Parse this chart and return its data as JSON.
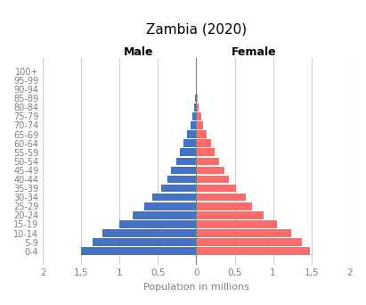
{
  "title": "Zambia (2020)",
  "xlabel": "Population in millions",
  "age_groups": [
    "0-4",
    "5-9",
    "10-14",
    "15-19",
    "20-24",
    "25-29",
    "30-34",
    "35-39",
    "40-44",
    "45-49",
    "50-54",
    "55-59",
    "60-64",
    "65-69",
    "70-74",
    "75-79",
    "80-84",
    "85-89",
    "90-94",
    "95-99",
    "100+"
  ],
  "male": [
    1.5,
    1.35,
    1.22,
    1.0,
    0.83,
    0.68,
    0.57,
    0.46,
    0.38,
    0.33,
    0.26,
    0.21,
    0.17,
    0.12,
    0.08,
    0.05,
    0.03,
    0.015,
    0.005,
    0.002,
    0.001
  ],
  "female": [
    1.48,
    1.38,
    1.24,
    1.05,
    0.88,
    0.73,
    0.65,
    0.52,
    0.42,
    0.37,
    0.3,
    0.24,
    0.19,
    0.13,
    0.09,
    0.06,
    0.03,
    0.015,
    0.005,
    0.002,
    0.001
  ],
  "male_color": "#4472C4",
  "female_color": "#FF6B6B",
  "xlim": 2.0,
  "xticks": [
    -2,
    -1.5,
    -1,
    -0.5,
    0,
    0.5,
    1,
    1.5,
    2
  ],
  "xticklabels": [
    "2",
    "1,5",
    "1",
    "0,5",
    "0",
    "0,5",
    "1",
    "1,5",
    "2"
  ],
  "male_label": "Male",
  "female_label": "Female",
  "bar_height": 0.85,
  "background_color": "#ffffff",
  "grid_color": "#d0d0d0"
}
